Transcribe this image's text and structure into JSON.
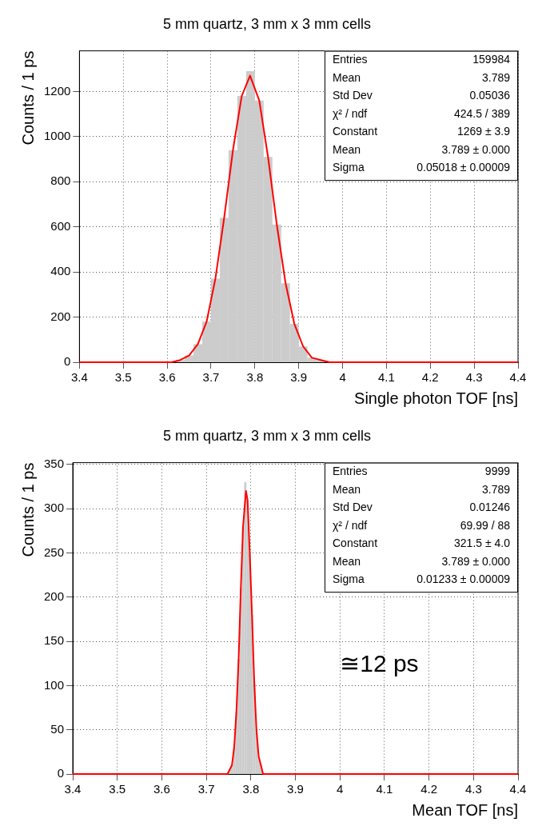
{
  "chart_data": [
    {
      "type": "histogram",
      "title": "5 mm quartz, 3 mm x 3 mm cells",
      "xlabel": "Single photon TOF [ns]",
      "ylabel": "Counts / 1 ps",
      "bins": [
        3.62,
        3.64,
        3.66,
        3.68,
        3.7,
        3.72,
        3.74,
        3.76,
        3.78,
        3.8,
        3.82,
        3.84,
        3.86,
        3.88,
        3.9,
        3.92,
        3.94,
        3.96
      ],
      "series": [
        {
          "type": "histogram",
          "color": "#cccccc",
          "values": [
            10,
            30,
            80,
            180,
            370,
            640,
            940,
            1180,
            1290,
            1160,
            910,
            610,
            350,
            170,
            70,
            20,
            10
          ]
        },
        {
          "type": "line",
          "color": "#ff0000",
          "x": [
            3.4,
            3.6,
            3.61,
            3.63,
            3.65,
            3.67,
            3.69,
            3.71,
            3.73,
            3.75,
            3.77,
            3.789,
            3.81,
            3.83,
            3.85,
            3.87,
            3.89,
            3.91,
            3.93,
            3.95,
            3.97,
            4.0,
            4.4
          ],
          "values": [
            0,
            0,
            0,
            10,
            30,
            80,
            180,
            370,
            640,
            940,
            1180,
            1270,
            1160,
            910,
            610,
            350,
            170,
            70,
            20,
            10,
            0,
            0,
            0
          ]
        }
      ],
      "xlim": [
        3.4,
        4.4
      ],
      "xticks": [
        3.4,
        3.5,
        3.6,
        3.7,
        3.8,
        3.9,
        4.0,
        4.1,
        4.2,
        4.3,
        4.4
      ],
      "ylim": [
        0,
        1380
      ],
      "yticks": [
        0,
        200,
        400,
        600,
        800,
        1000,
        1200
      ],
      "grid": true,
      "legend": false,
      "annotations": [
        "Entries  159984",
        "Mean  3.789",
        "Std Dev  0.05036",
        "χ² / ndf  424.5 / 389",
        "Constant  1269 ± 3.9",
        "Mean  3.789 ± 0.000",
        "Sigma  0.05018 ± 0.00009"
      ]
    },
    {
      "type": "histogram",
      "title": "5 mm quartz, 3 mm x 3 mm cells",
      "xlabel": "Mean TOF [ns]",
      "ylabel": "Counts / 1 ps",
      "bins": [
        3.75,
        3.755,
        3.76,
        3.765,
        3.77,
        3.775,
        3.78,
        3.785,
        3.79,
        3.795,
        3.8,
        3.805,
        3.81,
        3.815,
        3.82,
        3.825
      ],
      "series": [
        {
          "type": "histogram",
          "color": "#cccccc",
          "values": [
            5,
            10,
            30,
            70,
            130,
            210,
            280,
            330,
            310,
            250,
            180,
            105,
            50,
            20,
            10
          ]
        },
        {
          "type": "line",
          "color": "#ff0000",
          "x": [
            3.4,
            3.74,
            3.7475,
            3.7525,
            3.7575,
            3.7625,
            3.7675,
            3.7725,
            3.7775,
            3.7825,
            3.789,
            3.7925,
            3.7975,
            3.8025,
            3.8075,
            3.8125,
            3.8175,
            3.8225,
            3.8275,
            3.8325,
            3.84,
            4.4
          ],
          "values": [
            0,
            0,
            0,
            5,
            10,
            30,
            70,
            130,
            210,
            280,
            320,
            310,
            250,
            180,
            105,
            50,
            20,
            10,
            0,
            0,
            0,
            0
          ]
        }
      ],
      "xlim": [
        3.4,
        4.4
      ],
      "xticks": [
        3.4,
        3.5,
        3.6,
        3.7,
        3.8,
        3.9,
        4.0,
        4.1,
        4.2,
        4.3,
        4.4
      ],
      "ylim": [
        0,
        352
      ],
      "yticks": [
        0,
        50,
        100,
        150,
        200,
        250,
        300,
        350
      ],
      "grid": true,
      "legend": false,
      "annotations": [
        "Entries  9999",
        "Mean  3.789",
        "Std Dev  0.01246",
        "χ² / ndf  69.99 / 88",
        "Constant  321.5 ± 4.0",
        "Mean  3.789 ± 0.000",
        "Sigma  0.01233 ± 0.00009",
        "≅12 ps"
      ]
    }
  ]
}
